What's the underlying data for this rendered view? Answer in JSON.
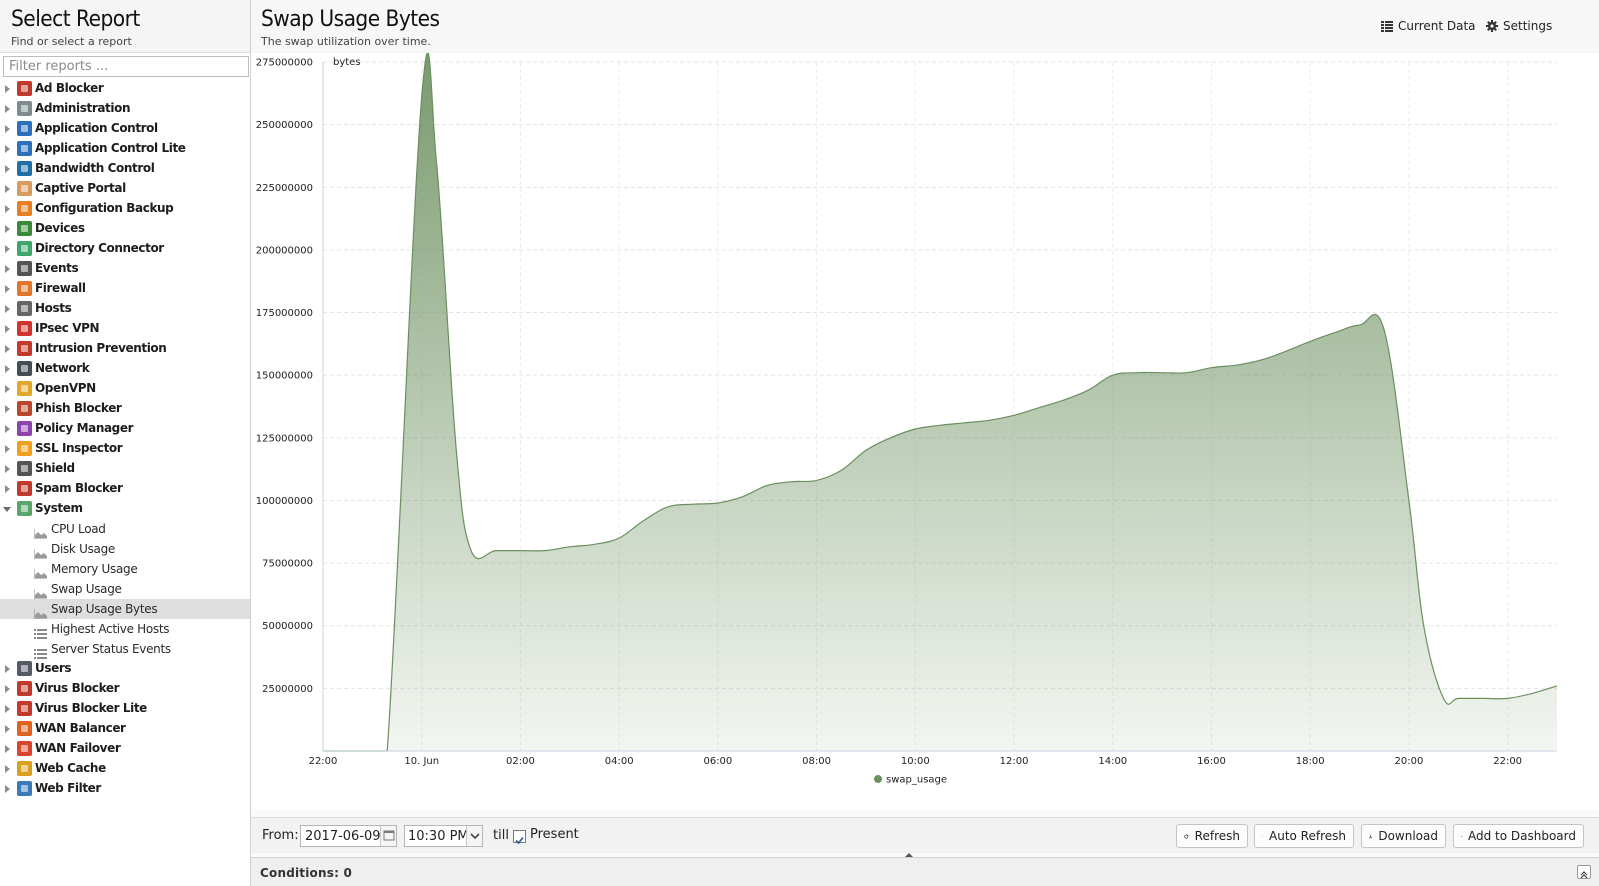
{
  "sidebar": {
    "title": "Select Report",
    "subtitle": "Find or select a report",
    "filter_placeholder": "Filter reports ...",
    "items": [
      {
        "label": "Ad Blocker",
        "color": "#c0392b"
      },
      {
        "label": "Administration",
        "color": "#7f8c8d"
      },
      {
        "label": "Application Control",
        "color": "#2c6fbb"
      },
      {
        "label": "Application Control Lite",
        "color": "#2c6fbb"
      },
      {
        "label": "Bandwidth Control",
        "color": "#1f6fa8"
      },
      {
        "label": "Captive Portal",
        "color": "#d99a5e"
      },
      {
        "label": "Configuration Backup",
        "color": "#e67e22"
      },
      {
        "label": "Devices",
        "color": "#3a8a3a"
      },
      {
        "label": "Directory Connector",
        "color": "#3fa56b"
      },
      {
        "label": "Events",
        "color": "#555555"
      },
      {
        "label": "Firewall",
        "color": "#e0762b"
      },
      {
        "label": "Hosts",
        "color": "#666666"
      },
      {
        "label": "IPsec VPN",
        "color": "#d0342c"
      },
      {
        "label": "Intrusion Prevention",
        "color": "#c0392b"
      },
      {
        "label": "Network",
        "color": "#444c55"
      },
      {
        "label": "OpenVPN",
        "color": "#e2a82b"
      },
      {
        "label": "Phish Blocker",
        "color": "#b8472c"
      },
      {
        "label": "Policy Manager",
        "color": "#8e44ad"
      },
      {
        "label": "SSL Inspector",
        "color": "#f0a020"
      },
      {
        "label": "Shield",
        "color": "#555555"
      },
      {
        "label": "Spam Blocker",
        "color": "#c0392b"
      }
    ],
    "system": {
      "label": "System",
      "color": "#5aa56b",
      "children": [
        {
          "label": "CPU Load",
          "icon": "area-chart-icon"
        },
        {
          "label": "Disk Usage",
          "icon": "area-chart-icon"
        },
        {
          "label": "Memory Usage",
          "icon": "area-chart-icon"
        },
        {
          "label": "Swap Usage",
          "icon": "area-chart-icon"
        },
        {
          "label": "Swap Usage Bytes",
          "icon": "area-chart-icon",
          "selected": true
        },
        {
          "label": "Highest Active Hosts",
          "icon": "list-icon"
        },
        {
          "label": "Server Status Events",
          "icon": "list-icon"
        }
      ]
    },
    "items_after": [
      {
        "label": "Users",
        "color": "#555a66"
      },
      {
        "label": "Virus Blocker",
        "color": "#c0392b"
      },
      {
        "label": "Virus Blocker Lite",
        "color": "#c0392b"
      },
      {
        "label": "WAN Balancer",
        "color": "#e06020"
      },
      {
        "label": "WAN Failover",
        "color": "#d9442c"
      },
      {
        "label": "Web Cache",
        "color": "#d9a020"
      },
      {
        "label": "Web Filter",
        "color": "#3a7ab8"
      }
    ]
  },
  "report": {
    "title": "Swap Usage Bytes",
    "subtitle": "The swap utilization over time.",
    "current_data_label": "Current Data",
    "settings_label": "Settings"
  },
  "chart_data": {
    "type": "area",
    "title": "",
    "ylabel": "bytes",
    "xlabel": "",
    "ylim": [
      0,
      275000000
    ],
    "yticks": [
      25000000,
      50000000,
      75000000,
      100000000,
      125000000,
      150000000,
      175000000,
      200000000,
      225000000,
      250000000,
      275000000
    ],
    "xlim_hours": [
      0,
      25
    ],
    "xticks": [
      {
        "h": 0,
        "label": "22:00"
      },
      {
        "h": 2,
        "label": "10. Jun"
      },
      {
        "h": 4,
        "label": "02:00"
      },
      {
        "h": 6,
        "label": "04:00"
      },
      {
        "h": 8,
        "label": "06:00"
      },
      {
        "h": 10,
        "label": "08:00"
      },
      {
        "h": 12,
        "label": "10:00"
      },
      {
        "h": 14,
        "label": "12:00"
      },
      {
        "h": 16,
        "label": "14:00"
      },
      {
        "h": 18,
        "label": "16:00"
      },
      {
        "h": 20,
        "label": "18:00"
      },
      {
        "h": 22,
        "label": "20:00"
      },
      {
        "h": 24,
        "label": "22:00"
      }
    ],
    "grid": true,
    "legend": "bottom-center",
    "series": [
      {
        "name": "swap_usage",
        "color": "#6b8f5e",
        "x": [
          0,
          1,
          1.3,
          2,
          2.3,
          2.7,
          3,
          3.5,
          4,
          4.5,
          5,
          5.5,
          6,
          6.5,
          7,
          7.5,
          8,
          8.5,
          9,
          9.5,
          10,
          10.5,
          11,
          11.5,
          12,
          12.5,
          13,
          13.5,
          14,
          14.5,
          15,
          15.5,
          16,
          16.5,
          17,
          17.5,
          18,
          18.5,
          19,
          19.5,
          20,
          20.5,
          21,
          21.5,
          22,
          22.3,
          22.7,
          23,
          23.5,
          24,
          24.5,
          25
        ],
        "values": [
          0,
          0,
          0,
          261000000,
          235000000,
          120000000,
          80000000,
          80000000,
          80000000,
          80000000,
          81500000,
          82500000,
          85000000,
          92000000,
          97500000,
          98500000,
          99000000,
          101500000,
          106000000,
          107500000,
          108000000,
          112000000,
          120000000,
          125000000,
          128500000,
          130000000,
          131000000,
          132000000,
          134000000,
          137000000,
          140000000,
          144000000,
          150000000,
          151000000,
          151000000,
          151000000,
          153000000,
          154000000,
          156000000,
          159500000,
          163500000,
          167000000,
          170000000,
          168000000,
          100000000,
          50000000,
          21000000,
          21000000,
          21000000,
          21000000,
          23000000,
          26000000
        ]
      }
    ]
  },
  "toolbar": {
    "from_label": "From:",
    "date_value": "2017-06-09",
    "time_value": "10:30 PM",
    "till_label": "till",
    "present_checked": true,
    "present_label": "Present",
    "refresh_label": "Refresh",
    "auto_refresh_label": "Auto Refresh",
    "download_label": "Download",
    "add_dashboard_label": "Add to Dashboard"
  },
  "conditions": {
    "label": "Conditions: 0"
  }
}
